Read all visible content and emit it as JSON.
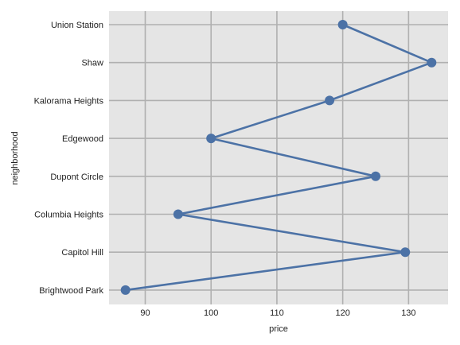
{
  "chart_data": {
    "type": "line",
    "title": "",
    "xlabel": "price",
    "ylabel": "neighborhood",
    "xlim": [
      84.5,
      136
    ],
    "xticks": [
      90,
      100,
      110,
      120,
      130
    ],
    "grid": true,
    "legend": "none",
    "colors": {
      "background": "#e5e5e5",
      "grid": "#b0b0b0",
      "series": "#4c72a6"
    },
    "categories": [
      "Union Station",
      "Shaw",
      "Kalorama Heights",
      "Edgewood",
      "Dupont Circle",
      "Columbia Heights",
      "Capitol Hill",
      "Brightwood Park"
    ],
    "series": [
      {
        "values": [
          120,
          133.5,
          118,
          100,
          125,
          95,
          129.5,
          87
        ]
      }
    ]
  }
}
